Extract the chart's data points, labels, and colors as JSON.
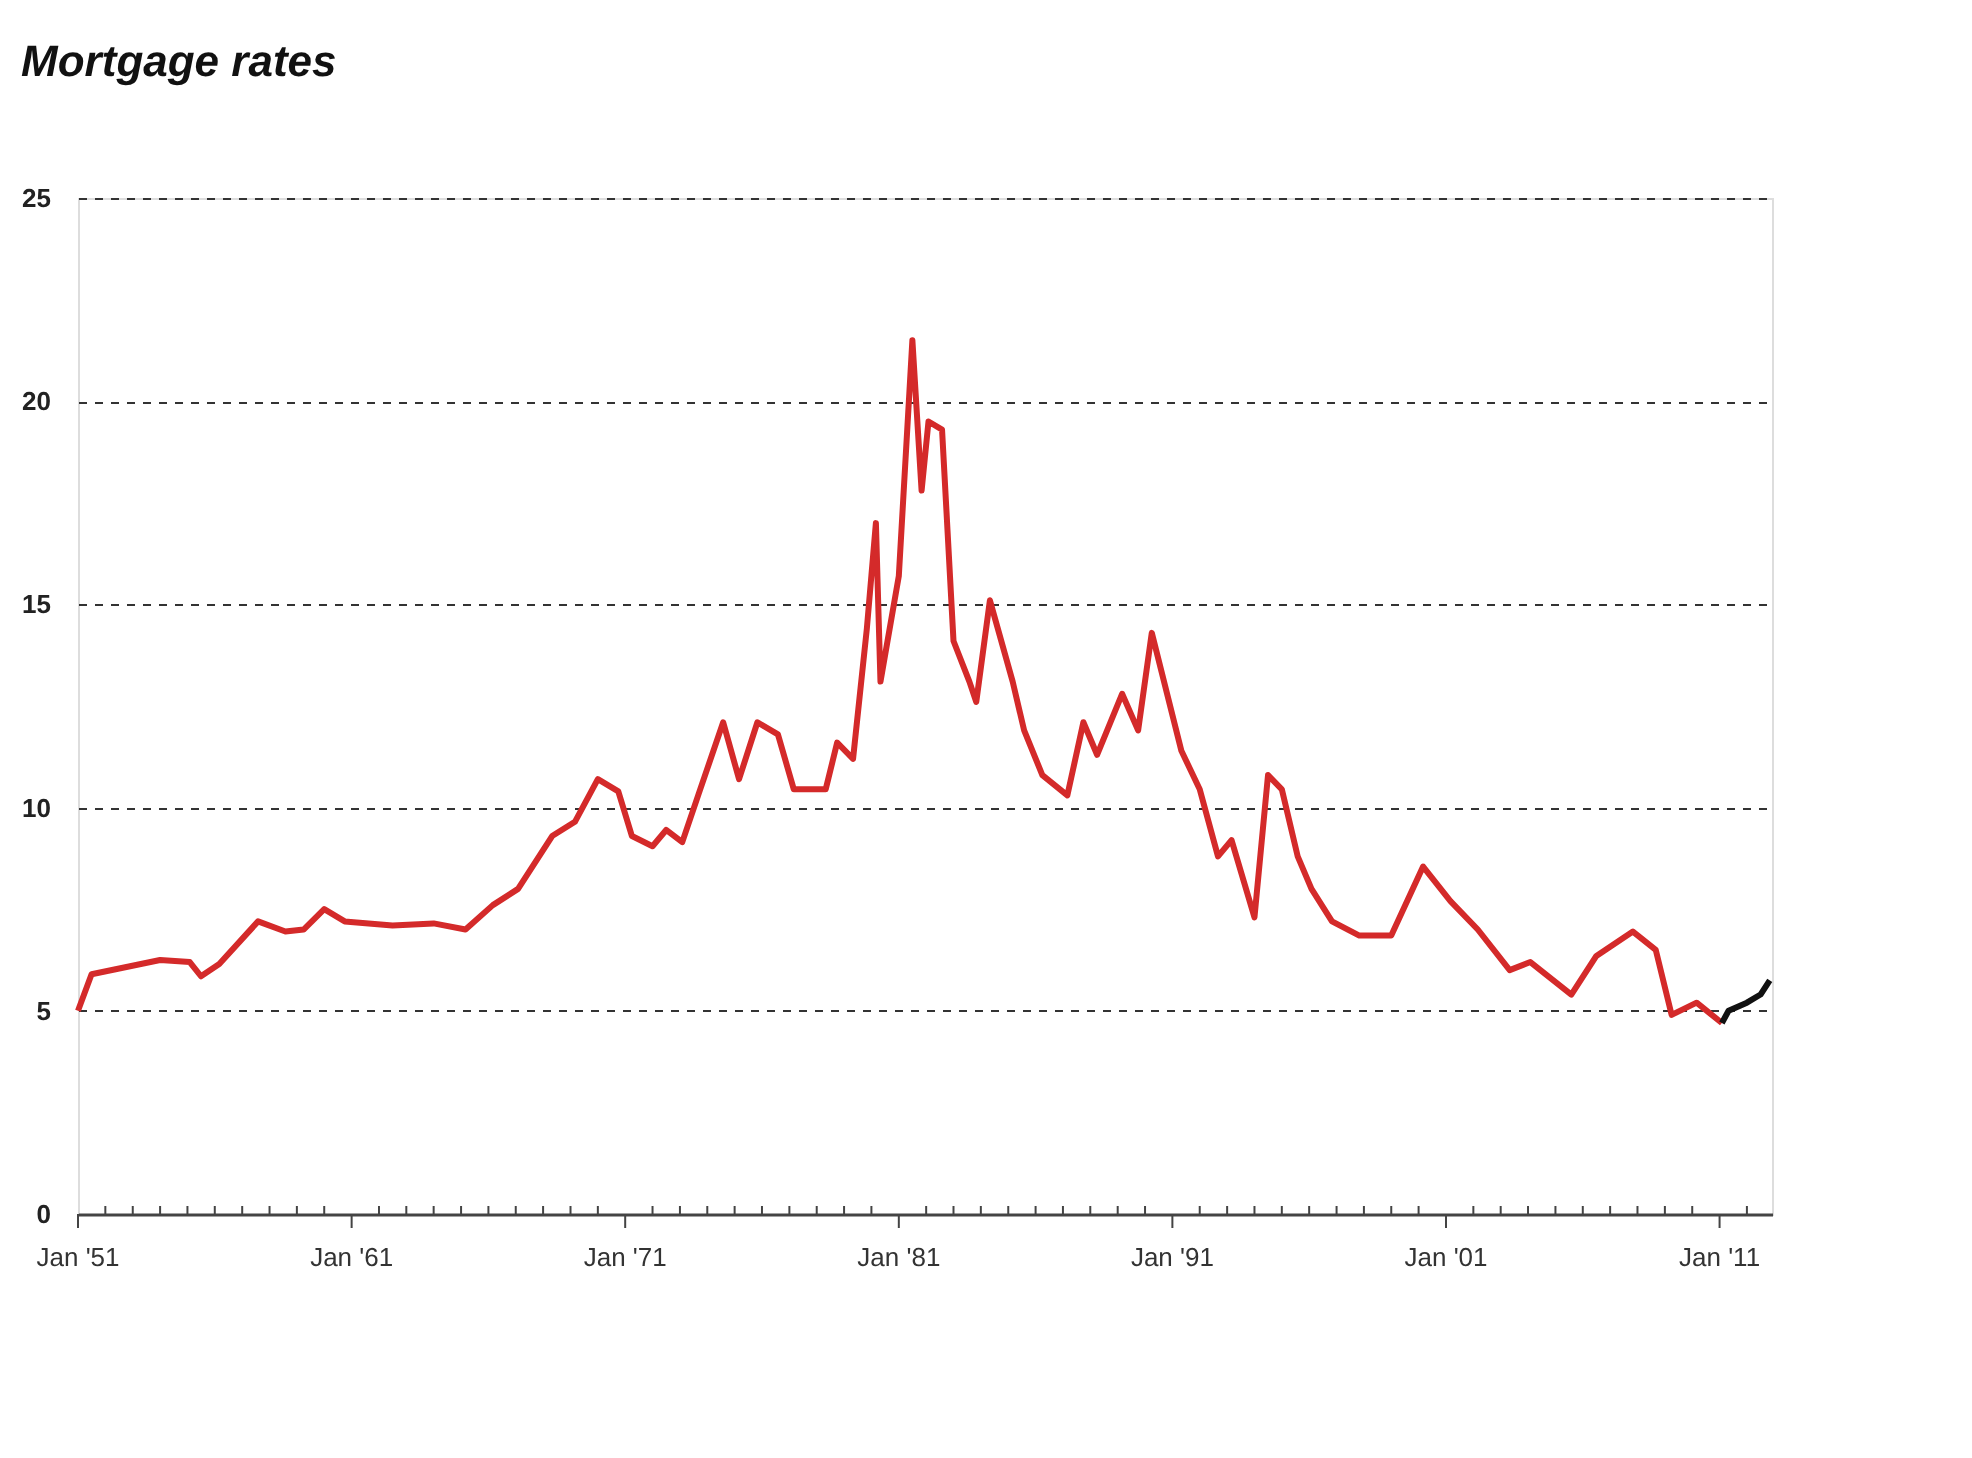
{
  "chart_data": {
    "type": "line",
    "title": "Mortgage rates",
    "xlim": [
      "1951-01",
      "2012-12"
    ],
    "ylim": [
      0,
      25
    ],
    "yticks": [
      0,
      5,
      10,
      15,
      20,
      25
    ],
    "xticks": [
      {
        "value": "1951-01",
        "label": "Jan '51"
      },
      {
        "value": "1952-01",
        "label": null
      },
      {
        "value": "1953-01",
        "label": null
      },
      {
        "value": "1954-01",
        "label": null
      },
      {
        "value": "1955-01",
        "label": null
      },
      {
        "value": "1956-01",
        "label": null
      },
      {
        "value": "1957-01",
        "label": null
      },
      {
        "value": "1958-01",
        "label": null
      },
      {
        "value": "1959-01",
        "label": null
      },
      {
        "value": "1960-01",
        "label": null
      },
      {
        "value": "1961-01",
        "label": "Jan '61"
      },
      {
        "value": "1962-01",
        "label": null
      },
      {
        "value": "1963-01",
        "label": null
      },
      {
        "value": "1964-01",
        "label": null
      },
      {
        "value": "1965-01",
        "label": null
      },
      {
        "value": "1966-01",
        "label": null
      },
      {
        "value": "1967-01",
        "label": null
      },
      {
        "value": "1968-01",
        "label": null
      },
      {
        "value": "1969-01",
        "label": null
      },
      {
        "value": "1970-01",
        "label": null
      },
      {
        "value": "1971-01",
        "label": "Jan '71"
      },
      {
        "value": "1972-01",
        "label": null
      },
      {
        "value": "1973-01",
        "label": null
      },
      {
        "value": "1974-01",
        "label": null
      },
      {
        "value": "1975-01",
        "label": null
      },
      {
        "value": "1976-01",
        "label": null
      },
      {
        "value": "1977-01",
        "label": null
      },
      {
        "value": "1978-01",
        "label": null
      },
      {
        "value": "1979-01",
        "label": null
      },
      {
        "value": "1980-01",
        "label": null
      },
      {
        "value": "1981-01",
        "label": "Jan '81"
      },
      {
        "value": "1982-01",
        "label": null
      },
      {
        "value": "1983-01",
        "label": null
      },
      {
        "value": "1984-01",
        "label": null
      },
      {
        "value": "1985-01",
        "label": null
      },
      {
        "value": "1986-01",
        "label": null
      },
      {
        "value": "1987-01",
        "label": null
      },
      {
        "value": "1988-01",
        "label": null
      },
      {
        "value": "1989-01",
        "label": null
      },
      {
        "value": "1990-01",
        "label": null
      },
      {
        "value": "1991-01",
        "label": "Jan '91"
      },
      {
        "value": "1992-01",
        "label": null
      },
      {
        "value": "1993-01",
        "label": null
      },
      {
        "value": "1994-01",
        "label": null
      },
      {
        "value": "1995-01",
        "label": null
      },
      {
        "value": "1996-01",
        "label": null
      },
      {
        "value": "1997-01",
        "label": null
      },
      {
        "value": "1998-01",
        "label": null
      },
      {
        "value": "1999-01",
        "label": null
      },
      {
        "value": "2000-01",
        "label": null
      },
      {
        "value": "2001-01",
        "label": "Jan '01"
      },
      {
        "value": "2002-01",
        "label": null
      },
      {
        "value": "2003-01",
        "label": null
      },
      {
        "value": "2004-01",
        "label": null
      },
      {
        "value": "2005-01",
        "label": null
      },
      {
        "value": "2006-01",
        "label": null
      },
      {
        "value": "2007-01",
        "label": null
      },
      {
        "value": "2008-01",
        "label": null
      },
      {
        "value": "2009-01",
        "label": null
      },
      {
        "value": "2010-01",
        "label": null
      },
      {
        "value": "2011-01",
        "label": "Jan '11"
      },
      {
        "value": "2012-01",
        "label": null
      }
    ],
    "grid": "y",
    "line_style": "solid",
    "marker": "none",
    "series": [
      {
        "color": "#d42a2a",
        "x": [
          "1951-01",
          "1951-07",
          "1954-01",
          "1955-02",
          "1955-07",
          "1956-03",
          "1957-08",
          "1958-08",
          "1959-04",
          "1960-01",
          "1960-10",
          "1962-07",
          "1964-01",
          "1965-03",
          "1966-03",
          "1967-02",
          "1968-05",
          "1969-03",
          "1970-01",
          "1970-10",
          "1971-04",
          "1972-01",
          "1972-07",
          "1973-02",
          "1973-09",
          "1974-08",
          "1975-03",
          "1975-11",
          "1976-08",
          "1977-03",
          "1978-05",
          "1978-10",
          "1979-05",
          "1979-11",
          "1980-03",
          "1980-05",
          "1981-01",
          "1981-07",
          "1981-11",
          "1982-02",
          "1982-08",
          "1983-01",
          "1983-08",
          "1983-11",
          "1984-05",
          "1985-03",
          "1985-08",
          "1986-04",
          "1987-03",
          "1987-10",
          "1988-04",
          "1989-03",
          "1989-10",
          "1990-04",
          "1991-05",
          "1992-01",
          "1992-09",
          "1993-03",
          "1994-01",
          "1994-07",
          "1995-01",
          "1995-08",
          "1996-02",
          "1996-11",
          "1997-11",
          "1999-01",
          "2000-03",
          "2001-03",
          "2002-03",
          "2003-05",
          "2004-02",
          "2005-08",
          "2006-07",
          "2007-11",
          "2008-09",
          "2009-04",
          "2010-03",
          "2011-02"
        ],
        "values": [
          5.0,
          5.9,
          6.25,
          6.2,
          5.85,
          6.15,
          7.2,
          6.95,
          7.0,
          7.5,
          7.2,
          7.1,
          7.15,
          7.0,
          7.6,
          8.0,
          9.3,
          9.65,
          10.7,
          10.4,
          9.3,
          9.05,
          9.45,
          9.15,
          10.3,
          12.1,
          10.7,
          12.1,
          11.8,
          10.45,
          10.45,
          11.6,
          11.2,
          14.4,
          17.0,
          13.1,
          15.7,
          21.5,
          17.8,
          19.5,
          19.3,
          14.1,
          13.1,
          12.6,
          15.1,
          13.1,
          11.9,
          10.8,
          10.3,
          12.1,
          11.3,
          12.8,
          11.9,
          14.3,
          11.4,
          10.45,
          8.8,
          9.2,
          7.3,
          10.8,
          10.45,
          8.8,
          8.0,
          7.2,
          6.85,
          6.85,
          8.55,
          7.7,
          7.0,
          6.0,
          6.2,
          5.4,
          6.35,
          6.95,
          6.5,
          4.9,
          5.2,
          4.7
        ]
      },
      {
        "color": "#111111",
        "x": [
          "2011-02",
          "2011-05",
          "2012-01",
          "2012-07",
          "2012-11"
        ],
        "values": [
          4.7,
          5.0,
          5.2,
          5.4,
          5.75
        ]
      }
    ]
  }
}
